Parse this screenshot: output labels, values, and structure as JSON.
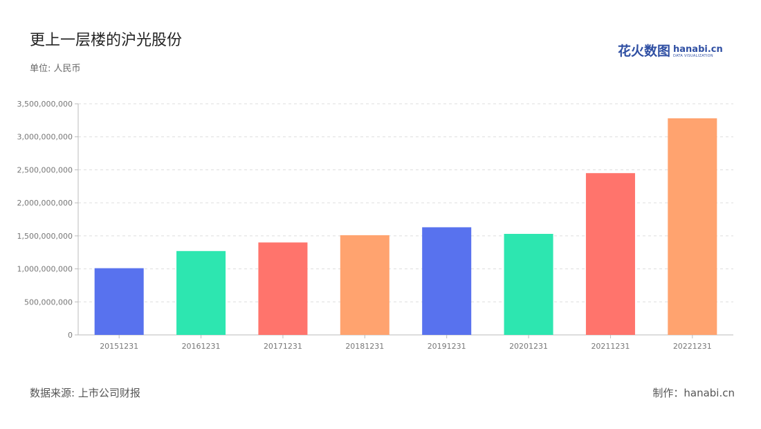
{
  "header": {
    "title": "更上一层楼的沪光股份",
    "unit": "单位: 人民币"
  },
  "logo": {
    "cn": "花火数图",
    "en": "hanabi.cn",
    "en_sub": "DATA VISUALIZATION"
  },
  "footer": {
    "source": "数据来源: 上市公司财报",
    "credit": "制作：hanabi.cn"
  },
  "colors": {
    "palette": [
      "#5872ee",
      "#2de6b0",
      "#ff746c",
      "#ffa36f"
    ],
    "grid": "#dddddd",
    "axis": "#bbbbbb"
  },
  "chart_data": {
    "type": "bar",
    "categories": [
      "20151231",
      "20161231",
      "20171231",
      "20181231",
      "20191231",
      "20201231",
      "20211231",
      "20221231"
    ],
    "values": [
      1010000000,
      1270000000,
      1400000000,
      1510000000,
      1630000000,
      1530000000,
      2450000000,
      3280000000
    ],
    "ylim": [
      0,
      3500000000
    ],
    "yticks": [
      0,
      500000000,
      1000000000,
      1500000000,
      2000000000,
      2500000000,
      3000000000,
      3500000000
    ],
    "ytick_labels": [
      "0",
      "500,000,000",
      "1,000,000,000",
      "1,500,000,000",
      "2,000,000,000",
      "2,500,000,000",
      "3,000,000,000",
      "3,500,000,000"
    ],
    "grid": true
  }
}
